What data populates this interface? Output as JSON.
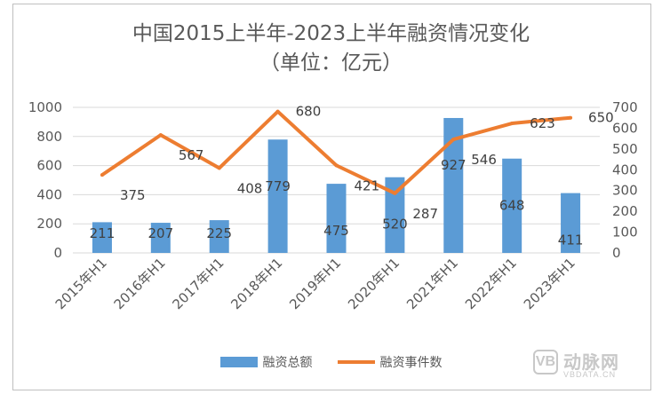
{
  "chart_data": {
    "type": "bar+line",
    "title_line1": "中国2015上半年-2023上半年融资情况变化",
    "title_line2": "（单位：亿元）",
    "categories": [
      "2015年H1",
      "2016年H1",
      "2017年H1",
      "2018年H1",
      "2019年H1",
      "2020年H1",
      "2021年H1",
      "2022年H1",
      "2023年H1"
    ],
    "series": [
      {
        "name": "融资总额",
        "kind": "bar",
        "axis": "left",
        "color": "#5b9bd5",
        "values": [
          211,
          207,
          225,
          779,
          475,
          520,
          927,
          648,
          411
        ]
      },
      {
        "name": "融资事件数",
        "kind": "line",
        "axis": "right",
        "color": "#ed7d31",
        "values": [
          375,
          567,
          408,
          680,
          421,
          287,
          546,
          623,
          650
        ]
      }
    ],
    "y_left": {
      "min": 0,
      "max": 1000,
      "step": 200,
      "ticks": [
        "0",
        "200",
        "400",
        "600",
        "800",
        "1000"
      ]
    },
    "y_right": {
      "min": 0,
      "max": 700,
      "step": 100,
      "ticks": [
        "0",
        "100",
        "200",
        "300",
        "400",
        "500",
        "600",
        "700"
      ]
    },
    "grid": true,
    "legend_position": "bottom"
  },
  "watermark": {
    "cn": "动脉网",
    "en": "VBDATA.CN",
    "mark": "VB"
  }
}
